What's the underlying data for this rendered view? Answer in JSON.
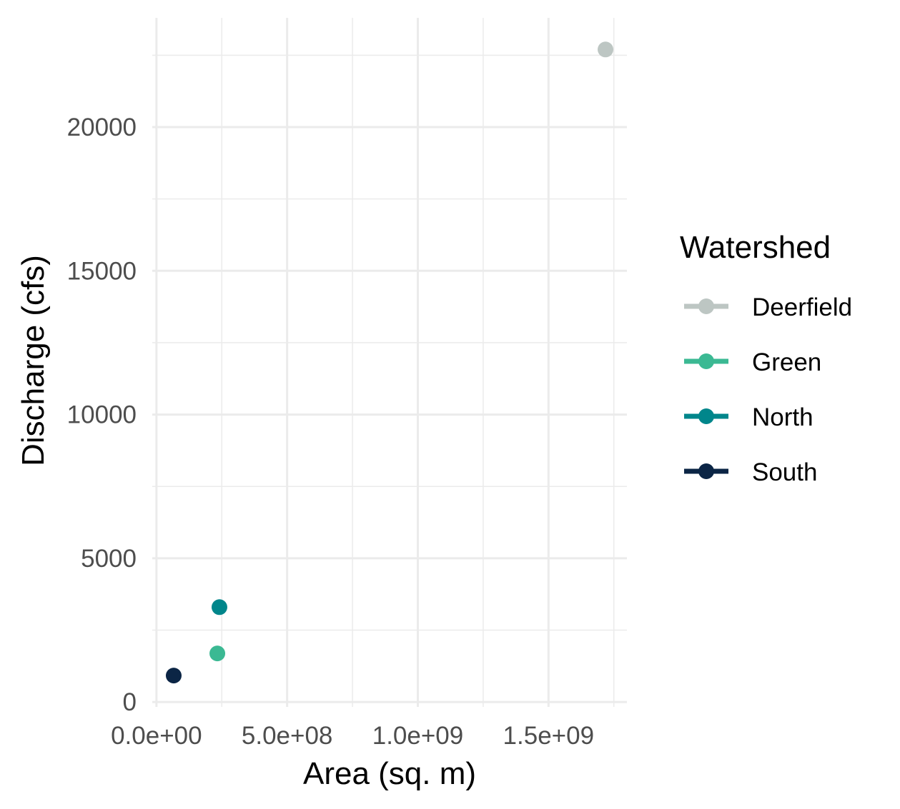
{
  "chart_data": {
    "type": "scatter",
    "title": "",
    "xlabel": "Area (sq. m)",
    "ylabel": "Discharge (cfs)",
    "xlim": [
      -16000000,
      1800000000
    ],
    "ylim": [
      -170,
      23800
    ],
    "x_ticks": [
      0,
      500000000,
      1000000000,
      1500000000
    ],
    "x_tick_labels": [
      "0.0e+00",
      "5.0e+08",
      "1.0e+09",
      "1.5e+09"
    ],
    "y_ticks": [
      0,
      5000,
      10000,
      15000,
      20000
    ],
    "y_tick_labels": [
      "0",
      "5000",
      "10000",
      "15000",
      "20000"
    ],
    "grid": true,
    "legend": {
      "title": "Watershed",
      "placement": "right"
    },
    "series": [
      {
        "name": "Deerfield",
        "color": "#bdc6c3",
        "x": [
          1718000000
        ],
        "y": [
          22700
        ]
      },
      {
        "name": "Green",
        "color": "#3bb993",
        "x": [
          233000000
        ],
        "y": [
          1690
        ]
      },
      {
        "name": "North",
        "color": "#00868b",
        "x": [
          241000000
        ],
        "y": [
          3300
        ]
      },
      {
        "name": "South",
        "color": "#0b2545",
        "x": [
          66000000
        ],
        "y": [
          920
        ]
      }
    ]
  }
}
